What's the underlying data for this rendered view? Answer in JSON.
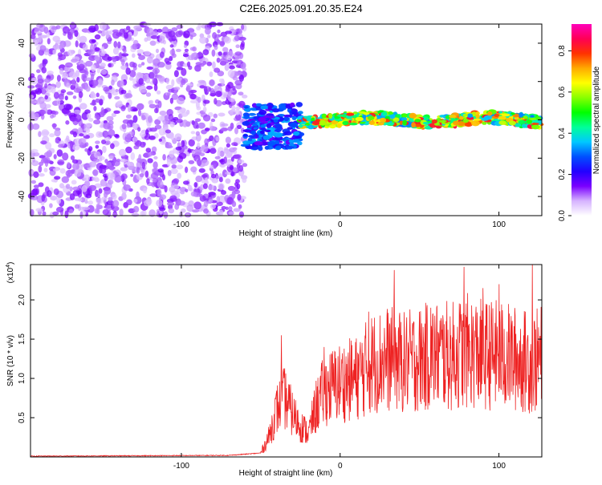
{
  "page_title": "C2E6.2025.091.20.35.E24",
  "chart_data": [
    {
      "type": "heatmap",
      "xlabel": "Height of straight line (km)",
      "ylabel": "Frequency (Hz)",
      "xlim": [
        -195,
        127
      ],
      "ylim": [
        -50,
        50
      ],
      "xticks": [
        -100,
        0,
        100
      ],
      "yticks": [
        -40,
        -20,
        0,
        20,
        40
      ],
      "colorbar": {
        "label": "Normalized spectral amplitude",
        "range": [
          0,
          0.93
        ],
        "ticks": [
          0.0,
          0.2,
          0.4,
          0.6,
          0.8
        ],
        "colors": [
          "#ffffff",
          "#d6b3ff",
          "#7a00ff",
          "#2200ff",
          "#0050ff",
          "#00c8ff",
          "#00ff99",
          "#00ff00",
          "#88ff00",
          "#ffff00",
          "#ffaa00",
          "#ff3300",
          "#ff0055",
          "#ff00bb"
        ]
      },
      "regions": [
        {
          "x_range": [
            -195,
            -60
          ],
          "y_range": [
            -50,
            50
          ],
          "amplitude": [
            0.05,
            0.15
          ],
          "description_level": "noise"
        },
        {
          "x_range": [
            -60,
            -25
          ],
          "y_range": [
            -15,
            8
          ],
          "amplitude": [
            0.15,
            0.35
          ]
        },
        {
          "x_range": [
            -25,
            127
          ],
          "y_range": [
            -3,
            3
          ],
          "amplitude": [
            0.3,
            0.85
          ]
        }
      ],
      "grid": false
    },
    {
      "type": "line",
      "xlabel": "Height of straight line (km)",
      "ylabel": "SNR (10 * v/v)",
      "y_multiplier": "(x10",
      "y_multiplier_exp": "4",
      "y_multiplier_close": ")",
      "xlim": [
        -195,
        127
      ],
      "ylim": [
        0,
        2.45
      ],
      "xticks": [
        -100,
        0,
        100
      ],
      "yticks": [
        0.5,
        1.0,
        1.5,
        2.0
      ],
      "ytick_labels": [
        "0.5",
        "1.0",
        "1.5",
        "2.0"
      ],
      "series": [
        {
          "color": "#ee2222",
          "trend": [
            [
              -195,
              0.01
            ],
            [
              -70,
              0.02
            ],
            [
              -50,
              0.05
            ],
            [
              -45,
              0.25
            ],
            [
              -40,
              0.6
            ],
            [
              -35,
              0.75
            ],
            [
              -30,
              0.55
            ],
            [
              -25,
              0.4
            ],
            [
              -20,
              0.3
            ],
            [
              -15,
              0.65
            ],
            [
              -10,
              0.85
            ],
            [
              0,
              0.95
            ],
            [
              10,
              1.0
            ],
            [
              20,
              1.2
            ],
            [
              30,
              1.25
            ],
            [
              40,
              1.2
            ],
            [
              50,
              1.25
            ],
            [
              60,
              1.3
            ],
            [
              70,
              1.28
            ],
            [
              80,
              1.35
            ],
            [
              90,
              1.3
            ],
            [
              100,
              1.3
            ],
            [
              110,
              1.25
            ],
            [
              120,
              1.2
            ],
            [
              127,
              1.25
            ]
          ],
          "peaks": [
            [
              -37,
              1.55
            ],
            [
              -10,
              1.4
            ],
            [
              18,
              1.85
            ],
            [
              34,
              2.38
            ],
            [
              57,
              1.9
            ],
            [
              78,
              2.42
            ],
            [
              90,
              2.15
            ],
            [
              100,
              2.2
            ],
            [
              121,
              2.45
            ]
          ]
        }
      ],
      "grid": false
    }
  ]
}
